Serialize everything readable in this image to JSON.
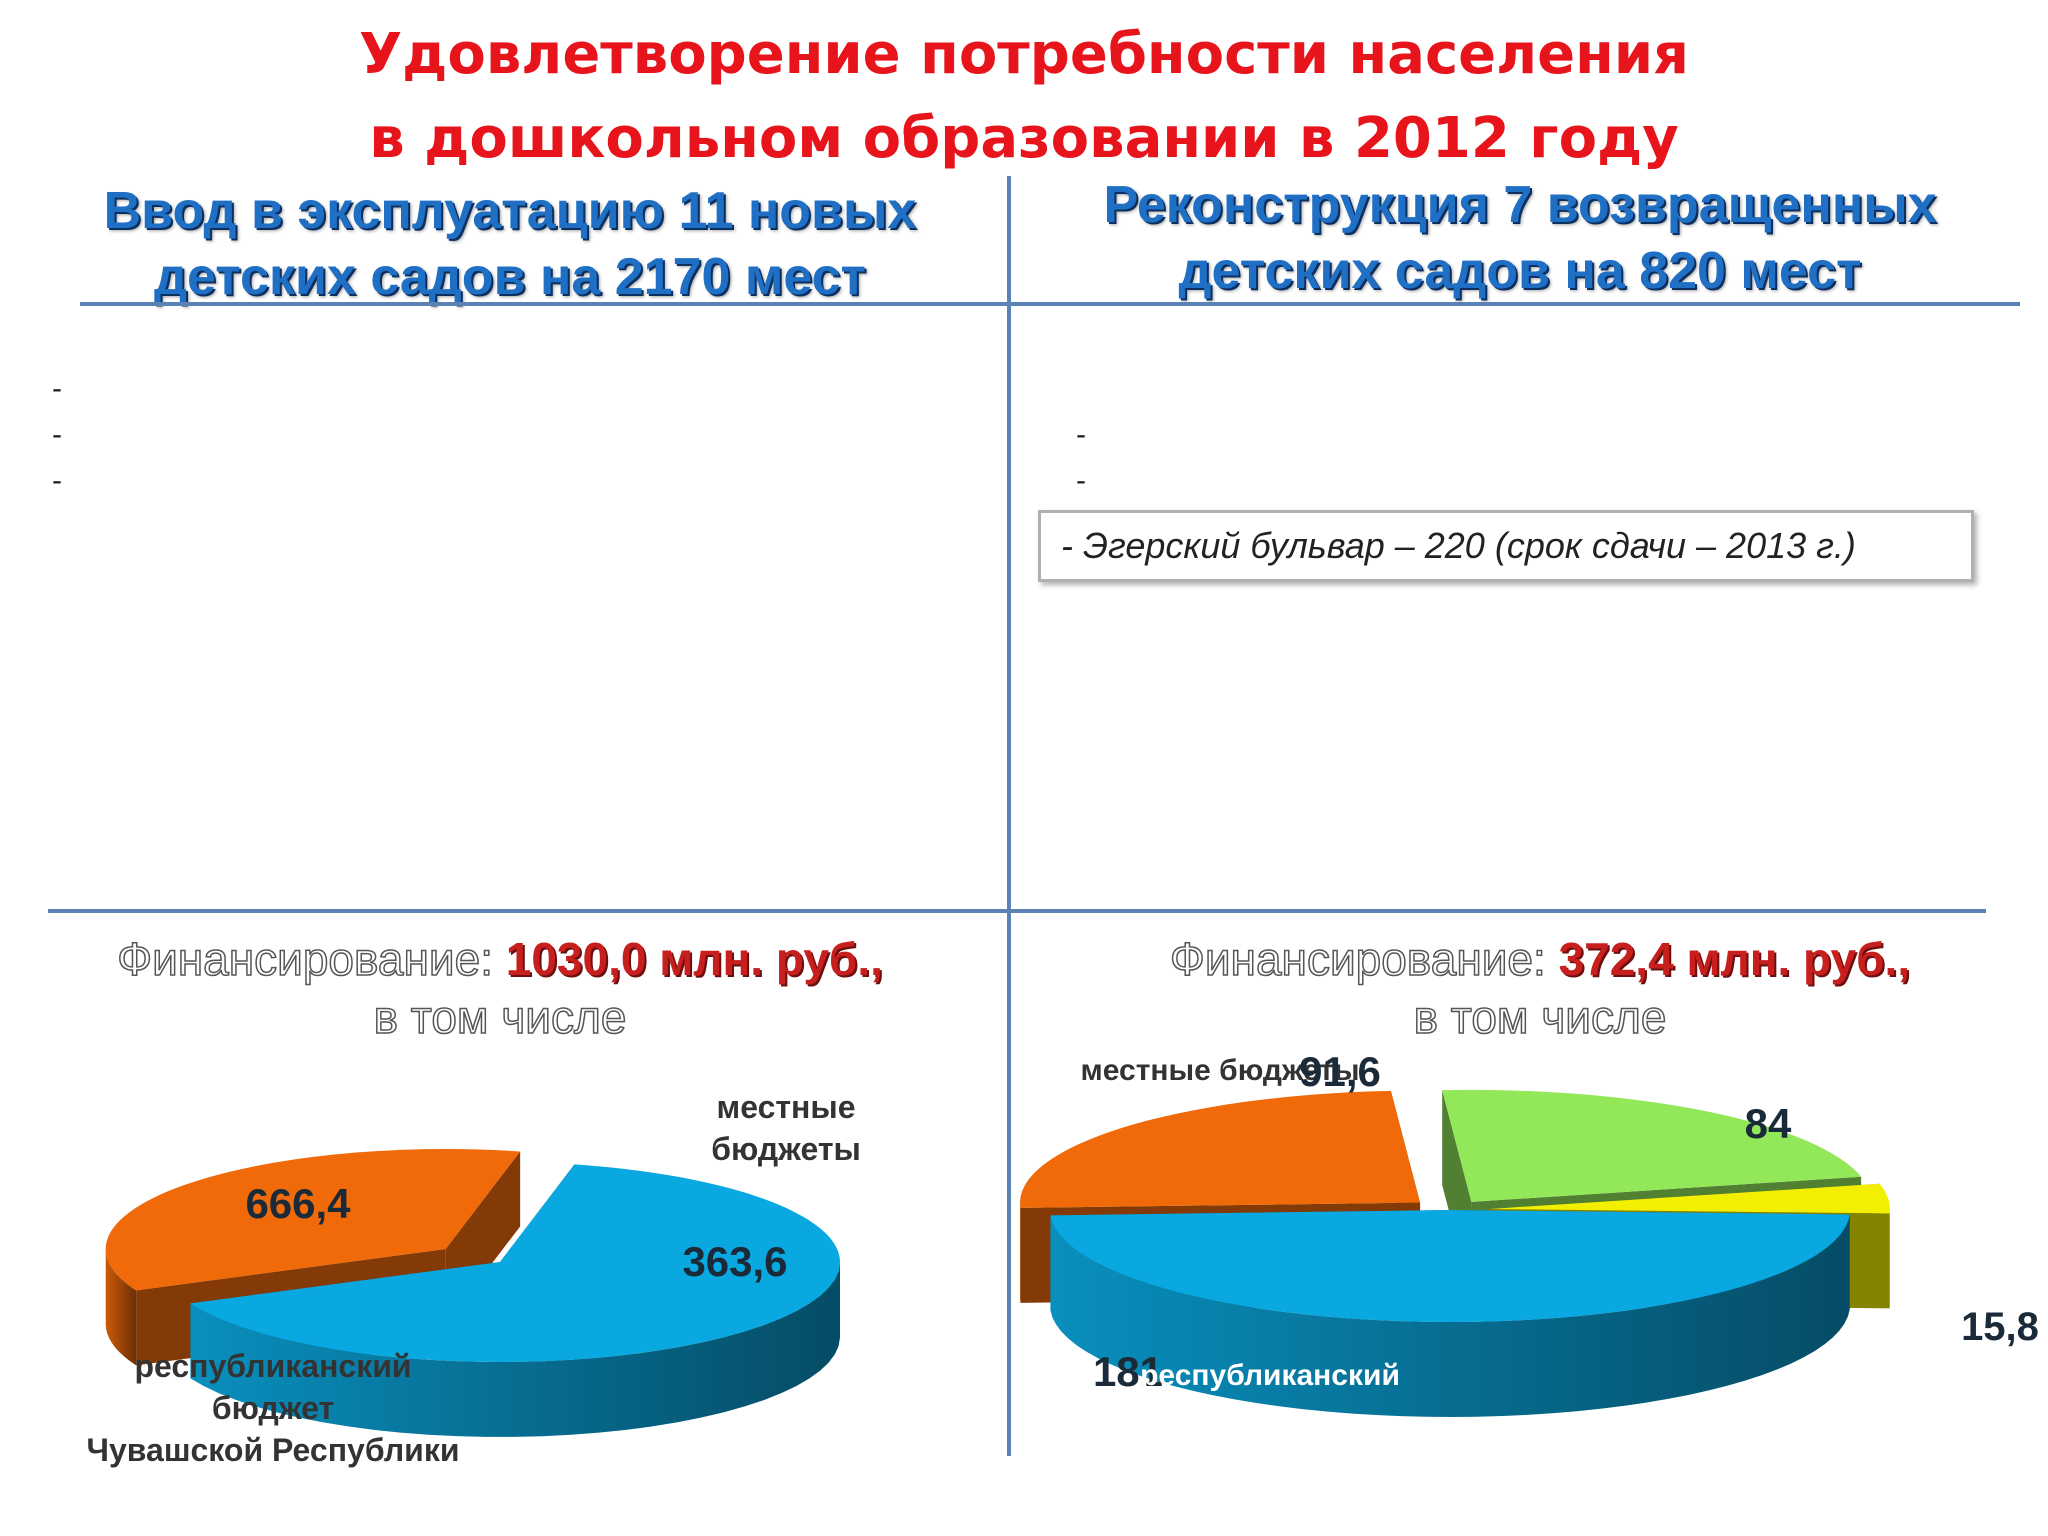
{
  "title": {
    "line1": "Удовлетворение потребности населения",
    "line2": "в дошкольном образовании в 2012 году"
  },
  "left_column": {
    "heading_line1": "Ввод в эксплуатацию  11 новых",
    "heading_line2": "детских садов на 2170 мест",
    "list_items": [
      "-",
      "-",
      "-"
    ],
    "financing_label": "Финансирование: ",
    "financing_amount": "1030,0 млн. руб.,",
    "financing_sub": "в том числе"
  },
  "right_column": {
    "heading_line1": "Реконструкция 7 возвращенных",
    "heading_line2": "детских садов на 820 мест",
    "list_items": [
      "-",
      "-"
    ],
    "callout_text": "- Эгерский бульвар – 220 (срок сдачи – 2013 г.)",
    "financing_label": "Финансирование: ",
    "financing_amount": "372,4 млн. руб.,",
    "financing_sub": "в том числе"
  },
  "colors": {
    "title": "#e8141b",
    "heading": "#1f6fc4",
    "divider": "#5a82b4",
    "amount": "#c71e1e"
  },
  "chart_data": [
    {
      "type": "pie",
      "style": "3d-exploded",
      "slices": [
        {
          "label": "республиканский бюджет Чувашской Республики",
          "value_label": "666,4",
          "value": 666.4,
          "color": "#0aa8e0",
          "label_lines": [
            "республиканский",
            "бюджет",
            "Чувашской Республики"
          ]
        },
        {
          "label": "местные бюджеты",
          "value_label": "363,6",
          "value": 363.6,
          "color": "#f06a0a",
          "label_lines": [
            "местные",
            "бюджеты"
          ]
        }
      ]
    },
    {
      "type": "pie",
      "style": "3d-exploded",
      "slices": [
        {
          "label": "республиканский",
          "value_label": "181",
          "value": 181,
          "color": "#0aa8e0"
        },
        {
          "label": "местные бюджеты",
          "value_label": "91,6",
          "value": 91.6,
          "color": "#f06a0a"
        },
        {
          "label": "",
          "value_label": "84",
          "value": 84,
          "color": "#93e85a"
        },
        {
          "label": "",
          "value_label": "15,8",
          "value": 15.8,
          "color": "#f2f000"
        }
      ]
    }
  ]
}
